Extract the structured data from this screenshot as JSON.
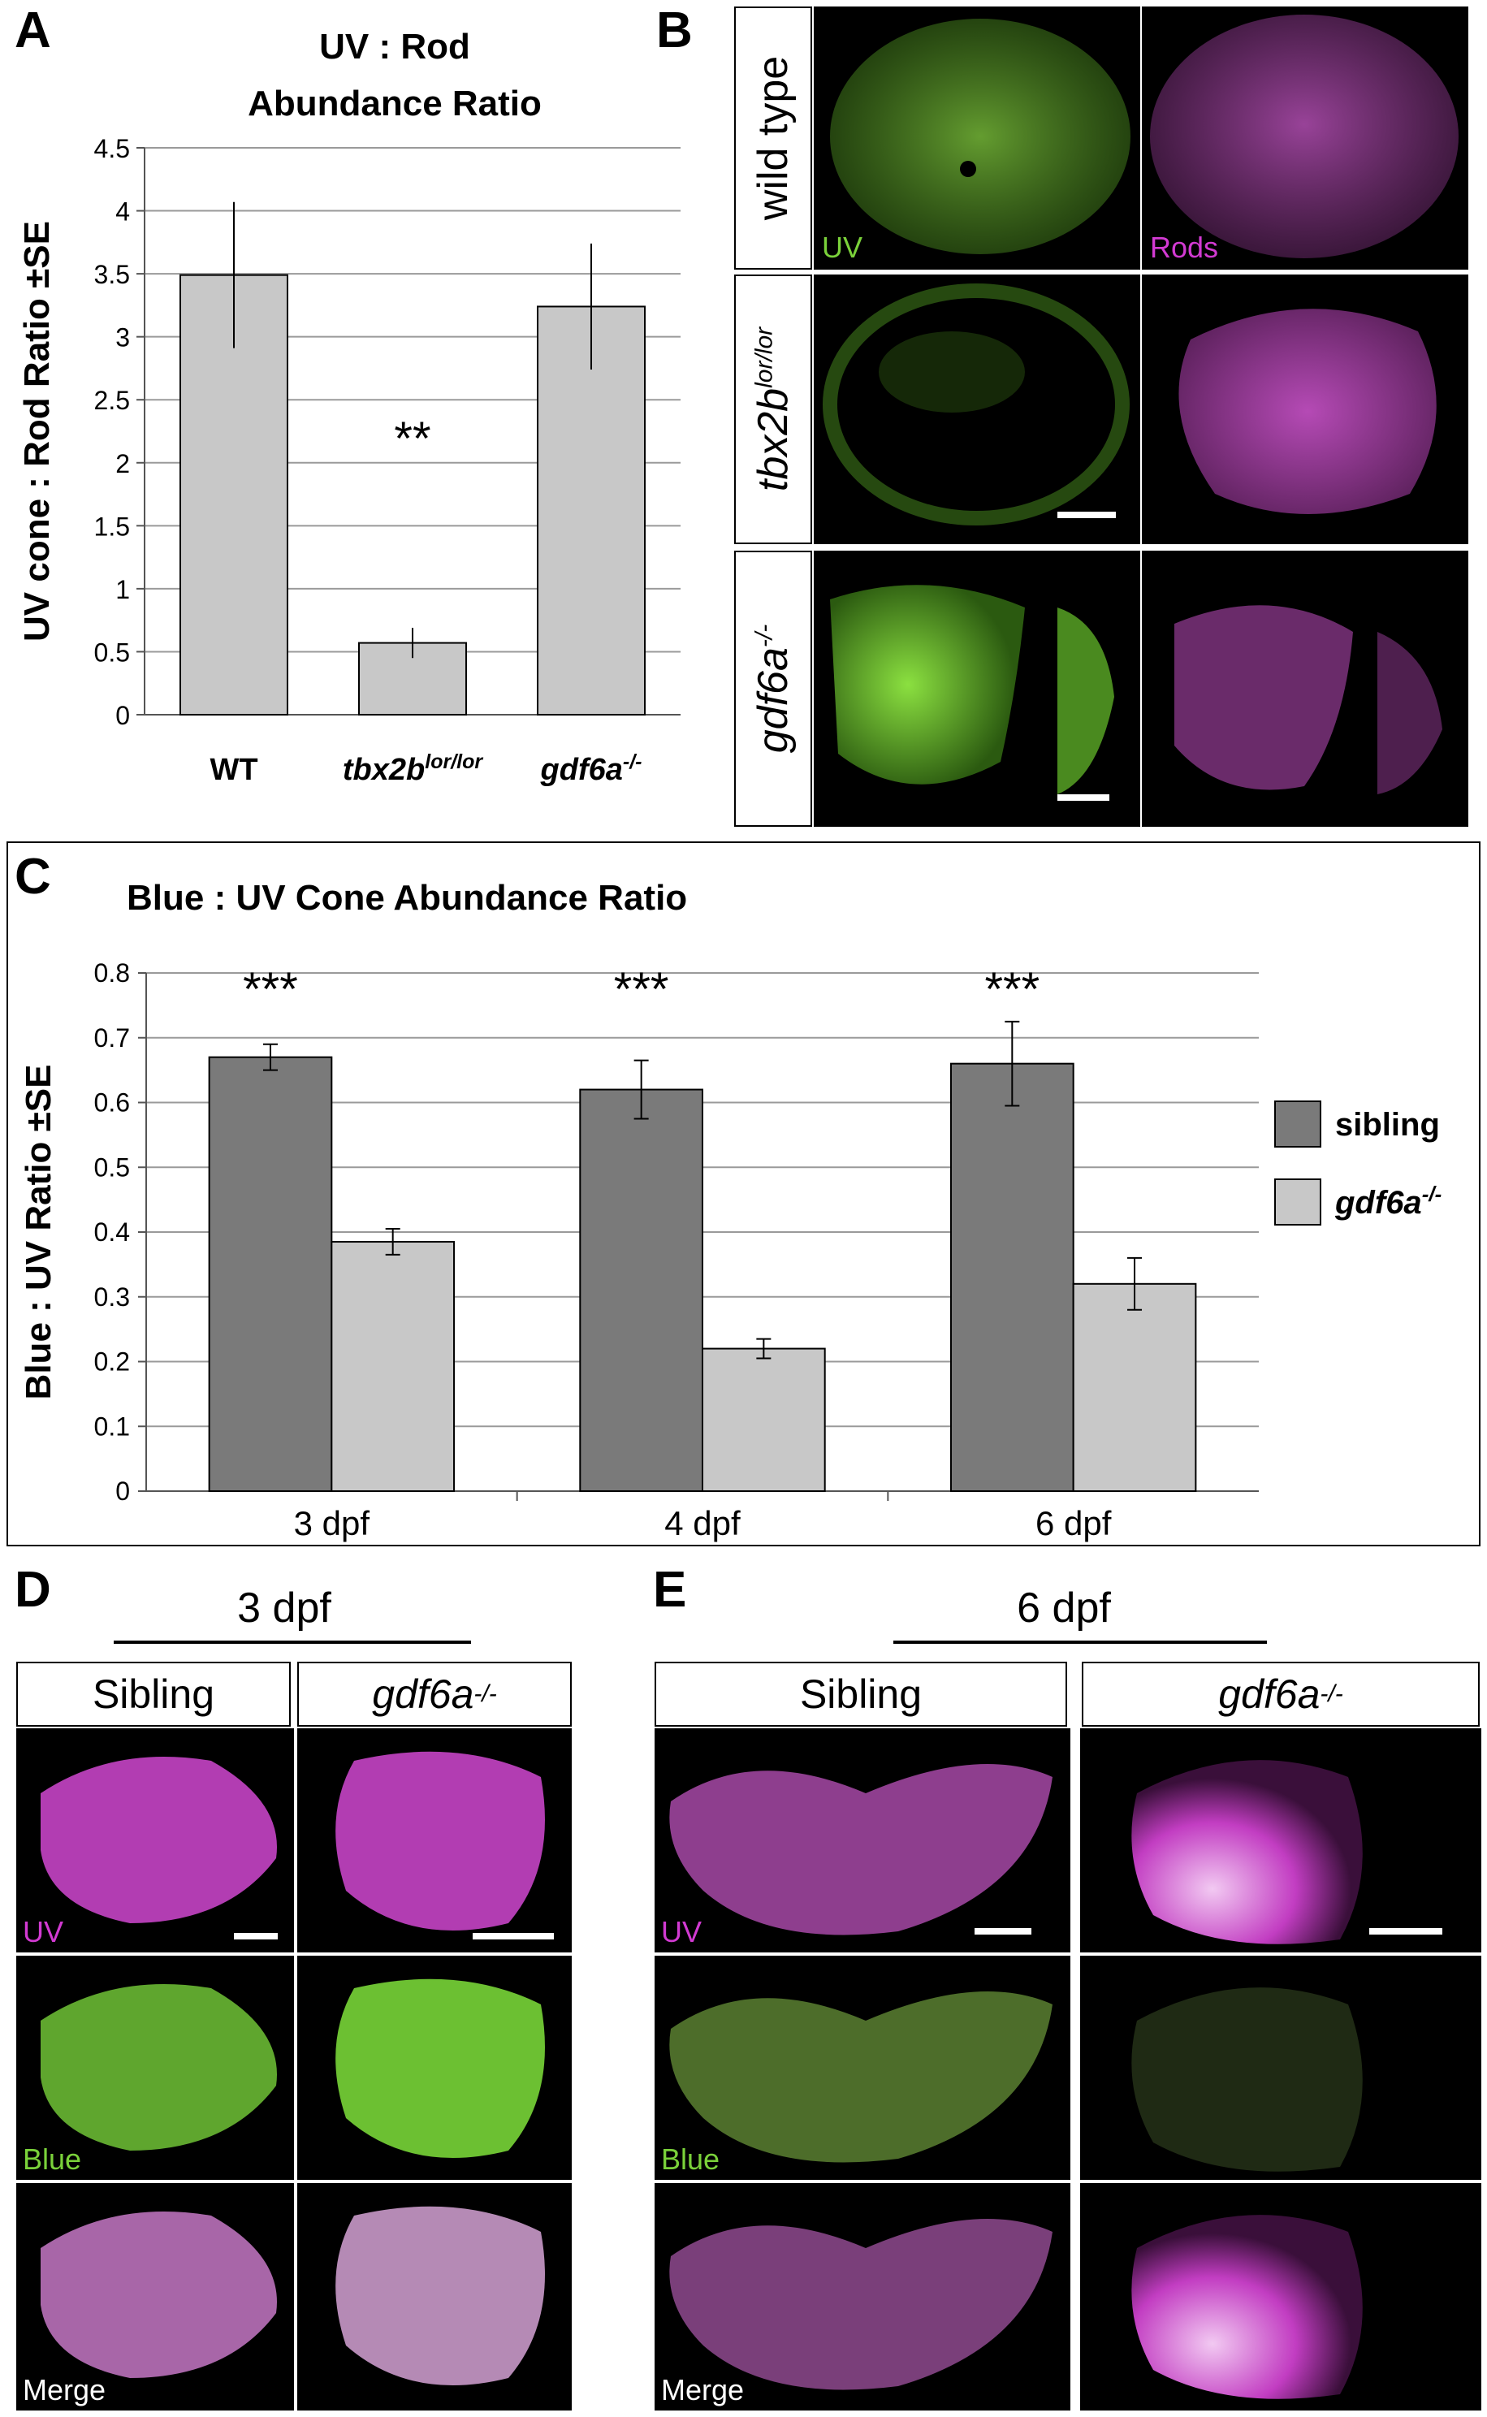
{
  "panel_letters": {
    "a": "A",
    "b": "B",
    "c": "C",
    "d": "D",
    "e": "E"
  },
  "chart_data": [
    {
      "type": "bar",
      "title": "UV : Rod Abundance Ratio",
      "title_lines": [
        "UV : Rod",
        "Abundance Ratio"
      ],
      "ylabel": "UV cone : Rod Ratio ±SE",
      "xlabel": "",
      "categories": [
        {
          "base": "WT",
          "sup": ""
        },
        {
          "base": "tbx2b",
          "sup": "lor/lor"
        },
        {
          "base": "gdf6a",
          "sup": "-/-"
        }
      ],
      "values": [
        3.49,
        0.57,
        3.24
      ],
      "errors": [
        0.58,
        0.12,
        0.5
      ],
      "ylim": [
        0,
        4.5
      ],
      "yticks": [
        "0",
        "0.5",
        "1",
        "1.5",
        "2",
        "2.5",
        "3",
        "3.5",
        "4",
        "4.5"
      ],
      "annotations": [
        {
          "category": 1,
          "text": "**"
        }
      ],
      "bar_color": "#c8c8c8",
      "grid": true,
      "legend": "none"
    },
    {
      "type": "bar",
      "title": "Blue : UV Cone Abundance Ratio",
      "ylabel": "Blue : UV Ratio ±SE",
      "xlabel": "",
      "categories": [
        "3 dpf",
        "4 dpf",
        "6 dpf"
      ],
      "series": [
        {
          "name": "sibling",
          "name_sup": "",
          "values": [
            0.67,
            0.62,
            0.66
          ],
          "errors": [
            0.02,
            0.045,
            0.065
          ],
          "color": "#7a7a7a"
        },
        {
          "name": "gdf6a",
          "name_sup": "-/-",
          "values": [
            0.385,
            0.22,
            0.32
          ],
          "errors": [
            0.02,
            0.015,
            0.04
          ],
          "color": "#c8c8c8"
        }
      ],
      "ylim": [
        0,
        0.8
      ],
      "yticks": [
        "0",
        "0.1",
        "0.2",
        "0.3",
        "0.4",
        "0.5",
        "0.6",
        "0.7",
        "0.8"
      ],
      "annotations": [
        {
          "category": 0,
          "text": "***"
        },
        {
          "category": 1,
          "text": "***"
        },
        {
          "category": 2,
          "text": "***"
        }
      ],
      "grid": true,
      "legend": "right"
    }
  ],
  "panel_b": {
    "rows": [
      {
        "base": "wild type",
        "sup": ""
      },
      {
        "base": "tbx2b",
        "sup": "lor/lor"
      },
      {
        "base": "gdf6a",
        "sup": "-/-"
      }
    ],
    "channel_uv": "UV",
    "channel_rods": "Rods"
  },
  "panel_d": {
    "title": "3 dpf",
    "col_sibling": "Sibling",
    "col_mutant": {
      "base": "gdf6a",
      "sup": "-/-"
    },
    "labels": [
      "UV",
      "Blue",
      "Merge"
    ]
  },
  "panel_e": {
    "title": "6 dpf",
    "col_sibling": "Sibling",
    "col_mutant": {
      "base": "gdf6a",
      "sup": "-/-"
    },
    "labels": [
      "UV",
      "Blue",
      "Merge"
    ]
  },
  "colors": {
    "green": "#7ad13a",
    "magenta": "#d23ad2",
    "bar_dark": "#7a7a7a",
    "bar_light": "#c8c8c8"
  }
}
